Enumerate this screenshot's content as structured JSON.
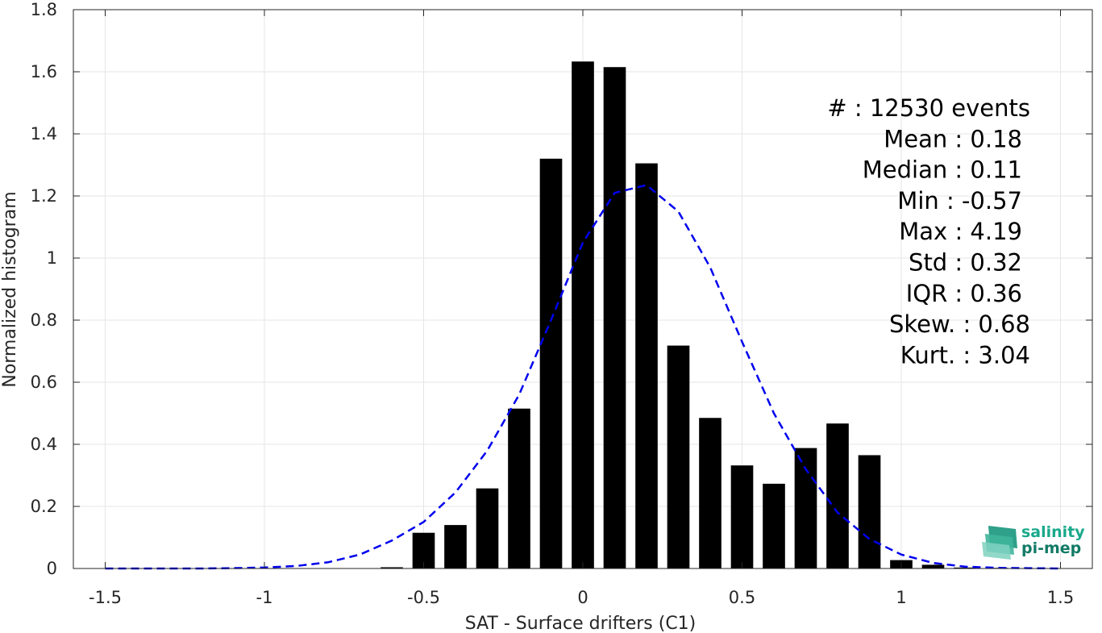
{
  "chart_data": {
    "type": "bar",
    "title": "",
    "xlabel": "SAT - Surface drifters (C1)",
    "ylabel": "Normalized histogram",
    "xlim": [
      -1.6,
      1.6
    ],
    "ylim": [
      0,
      1.8
    ],
    "grid": true,
    "xticks": [
      -1.5,
      -1,
      -0.5,
      0,
      0.5,
      1,
      1.5
    ],
    "xtick_labels": [
      "-1.5",
      "-1",
      "-0.5",
      "0",
      "0.5",
      "1",
      "1.5"
    ],
    "yticks": [
      0,
      0.2,
      0.4,
      0.6,
      0.8,
      1,
      1.2,
      1.4,
      1.6,
      1.8
    ],
    "ytick_labels": [
      "0",
      "0.2",
      "0.4",
      "0.6",
      "0.8",
      "1",
      "1.2",
      "1.4",
      "1.6",
      "1.8"
    ],
    "bar_width": 0.07,
    "bar_color": "#000000",
    "bars": [
      {
        "x": -0.6,
        "value": 0.004
      },
      {
        "x": -0.5,
        "value": 0.115
      },
      {
        "x": -0.4,
        "value": 0.14
      },
      {
        "x": -0.3,
        "value": 0.258
      },
      {
        "x": -0.2,
        "value": 0.515
      },
      {
        "x": -0.1,
        "value": 1.32
      },
      {
        "x": 0.0,
        "value": 1.633
      },
      {
        "x": 0.1,
        "value": 1.615
      },
      {
        "x": 0.2,
        "value": 1.305
      },
      {
        "x": 0.3,
        "value": 0.718
      },
      {
        "x": 0.4,
        "value": 0.485
      },
      {
        "x": 0.5,
        "value": 0.332
      },
      {
        "x": 0.6,
        "value": 0.273
      },
      {
        "x": 0.7,
        "value": 0.388
      },
      {
        "x": 0.8,
        "value": 0.467
      },
      {
        "x": 0.9,
        "value": 0.365
      },
      {
        "x": 1.0,
        "value": 0.027
      },
      {
        "x": 1.1,
        "value": 0.012
      },
      {
        "x": 1.2,
        "value": 0.003
      },
      {
        "x": 1.3,
        "value": 0.002
      },
      {
        "x": 1.4,
        "value": 0.001
      },
      {
        "x": 1.5,
        "value": 0.001
      }
    ],
    "fit_curve": {
      "style": "dashed",
      "color": "#0000ee",
      "x": [
        -1.5,
        -1.4,
        -1.3,
        -1.2,
        -1.1,
        -1.0,
        -0.9,
        -0.8,
        -0.7,
        -0.6,
        -0.5,
        -0.4,
        -0.3,
        -0.2,
        -0.1,
        0.0,
        0.1,
        0.2,
        0.3,
        0.4,
        0.5,
        0.6,
        0.7,
        0.8,
        0.9,
        1.0,
        1.1,
        1.2,
        1.3,
        1.4,
        1.5
      ],
      "y": [
        0.0,
        0.0,
        0.0,
        0.0,
        0.001,
        0.003,
        0.008,
        0.02,
        0.045,
        0.09,
        0.15,
        0.245,
        0.38,
        0.56,
        0.8,
        1.05,
        1.21,
        1.235,
        1.15,
        0.97,
        0.73,
        0.5,
        0.32,
        0.18,
        0.095,
        0.045,
        0.018,
        0.006,
        0.002,
        0.001,
        0.0
      ]
    },
    "annotations": [
      "#  : 12530 events",
      "Mean : 0.18",
      "Median : 0.11",
      "Min : -0.57",
      "Max : 4.19",
      "Std : 0.32",
      "IQR : 0.36",
      "Skew. : 0.68",
      "Kurt. : 3.04"
    ],
    "logo": {
      "line1": "salinity",
      "line2": "pi-mep",
      "color1": "#19a98c",
      "color2": "#127a66"
    }
  }
}
